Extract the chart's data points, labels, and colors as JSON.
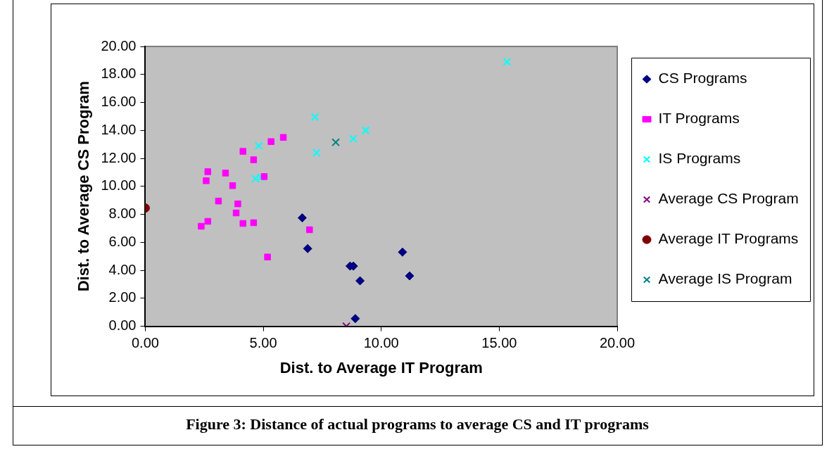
{
  "chart_data": {
    "type": "scatter",
    "xlabel": "Dist. to Average IT Program",
    "ylabel": "Dist. to Average CS Program",
    "xlim": [
      0,
      20
    ],
    "xticks": [
      {
        "value": 0,
        "label": "0.00"
      },
      {
        "value": 5,
        "label": "5.00"
      },
      {
        "value": 10,
        "label": "10.00"
      },
      {
        "value": 15,
        "label": "15.00"
      },
      {
        "value": 20,
        "label": "20.00"
      }
    ],
    "ylim": [
      0,
      20
    ],
    "yticks": [
      {
        "value": 0,
        "label": "0.00"
      },
      {
        "value": 2,
        "label": "2.00"
      },
      {
        "value": 4,
        "label": "4.00"
      },
      {
        "value": 6,
        "label": "6.00"
      },
      {
        "value": 8,
        "label": "8.00"
      },
      {
        "value": 10,
        "label": "10.00"
      },
      {
        "value": 12,
        "label": "12.00"
      },
      {
        "value": 14,
        "label": "14.00"
      },
      {
        "value": 16,
        "label": "16.00"
      },
      {
        "value": 18,
        "label": "18.00"
      },
      {
        "value": 20,
        "label": "20.00"
      }
    ],
    "grid": false,
    "legend": "right",
    "series": [
      {
        "name": "CS Programs",
        "color": "#000080",
        "marker": "diamond",
        "x": [
          6.65,
          6.88,
          8.68,
          8.82,
          9.1,
          10.9,
          11.2,
          8.9
        ],
        "values": [
          7.75,
          5.55,
          4.3,
          4.3,
          3.25,
          5.3,
          3.6,
          0.55
        ]
      },
      {
        "name": "IT Programs",
        "color": "#ff00ff",
        "marker": "square",
        "x": [
          5.85,
          5.33,
          4.14,
          4.59,
          2.65,
          3.4,
          2.58,
          5.04,
          3.7,
          3.1,
          3.92,
          3.85,
          2.65,
          2.37,
          4.14,
          4.59,
          6.96,
          5.18
        ],
        "values": [
          13.5,
          13.2,
          12.5,
          11.9,
          11.05,
          10.95,
          10.4,
          10.7,
          10.05,
          8.95,
          8.75,
          8.1,
          7.5,
          7.15,
          7.35,
          7.4,
          6.9,
          4.95
        ]
      },
      {
        "name": "IS Programs",
        "color": "#00ffff",
        "marker": "cross",
        "x": [
          15.33,
          7.19,
          9.34,
          8.81,
          7.26,
          4.81,
          4.67,
          4.9
        ],
        "values": [
          18.9,
          14.95,
          14.0,
          13.4,
          12.4,
          12.9,
          10.55,
          10.65
        ]
      },
      {
        "name": "Average CS Program",
        "color": "#800080",
        "marker": "cross",
        "x": [
          8.52
        ],
        "values": [
          0
        ]
      },
      {
        "name": "Average IT Programs",
        "color": "#800000",
        "marker": "circle",
        "x": [
          0
        ],
        "values": [
          8.45
        ]
      },
      {
        "name": "Average IS Program",
        "color": "#008080",
        "marker": "cross",
        "x": [
          8.07
        ],
        "values": [
          13.15
        ]
      }
    ],
    "annotations": [
      "Figure 3: Distance of actual programs to average CS and IT programs"
    ]
  }
}
